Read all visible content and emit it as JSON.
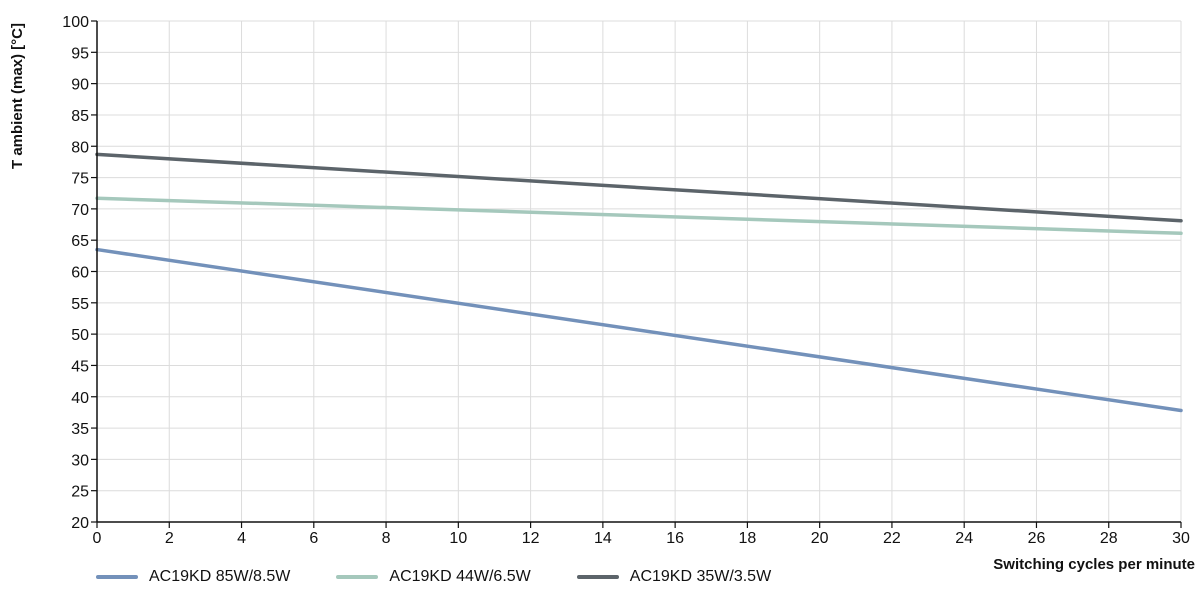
{
  "chart_data": {
    "type": "line",
    "title": "",
    "xlabel": "Switching cycles per minute",
    "ylabel": "T ambient (max) [°C]",
    "xlim": [
      0,
      30
    ],
    "ylim": [
      20,
      100
    ],
    "xticks": [
      0,
      2,
      4,
      6,
      8,
      10,
      12,
      14,
      16,
      18,
      20,
      22,
      24,
      26,
      28,
      30
    ],
    "yticks": [
      20,
      25,
      30,
      35,
      40,
      45,
      50,
      55,
      60,
      65,
      70,
      75,
      80,
      85,
      90,
      95,
      100
    ],
    "grid": true,
    "legend_position": "bottom-left",
    "series": [
      {
        "name": "AC19KD 85W/8.5W",
        "color": "#7391ba",
        "x": [
          0,
          30
        ],
        "y": [
          63.5,
          37.8
        ]
      },
      {
        "name": "AC19KD 44W/6.5W",
        "color": "#a5c8bc",
        "x": [
          0,
          30
        ],
        "y": [
          71.7,
          66.1
        ]
      },
      {
        "name": "AC19KD 35W/3.5W",
        "color": "#5c646a",
        "x": [
          0,
          30
        ],
        "y": [
          78.7,
          68.1
        ]
      }
    ]
  }
}
